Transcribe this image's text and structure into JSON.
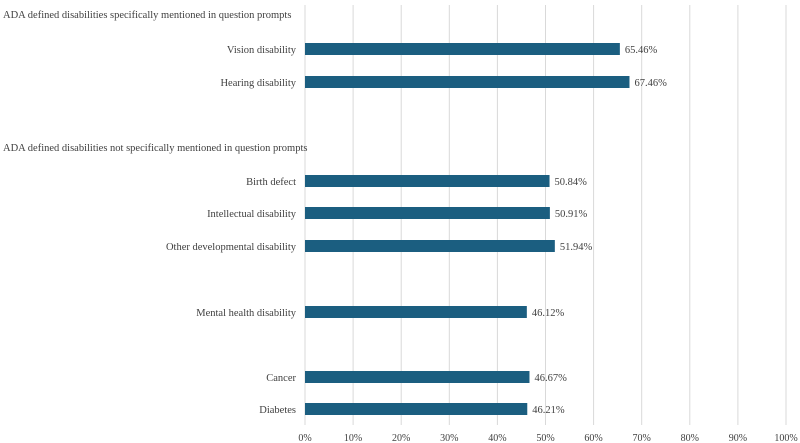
{
  "chart_data": {
    "type": "bar",
    "orientation": "horizontal",
    "title": "",
    "xlabel": "",
    "ylabel": "",
    "xlim": [
      0,
      100
    ],
    "grid": true,
    "bar_color": "#1b5e80",
    "x_ticks": [
      "0%",
      "10%",
      "20%",
      "30%",
      "40%",
      "50%",
      "60%",
      "70%",
      "80%",
      "90%",
      "100%"
    ],
    "group_labels": [
      "ADA defined disabilities specifically mentioned in question prompts",
      "ADA defined disabilities not specifically mentioned in question prompts"
    ],
    "categories": [
      "Vision disability",
      "Hearing disability",
      "Birth defect",
      "Intellectual disability",
      "Other developmental disability",
      "Mental health disability",
      "Cancer",
      "Diabetes"
    ],
    "values": [
      65.46,
      67.46,
      50.84,
      50.91,
      51.94,
      46.12,
      46.67,
      46.21
    ],
    "value_labels": [
      "65.46%",
      "67.46%",
      "50.84%",
      "50.91%",
      "51.94%",
      "46.12%",
      "46.67%",
      "46.21%"
    ]
  }
}
